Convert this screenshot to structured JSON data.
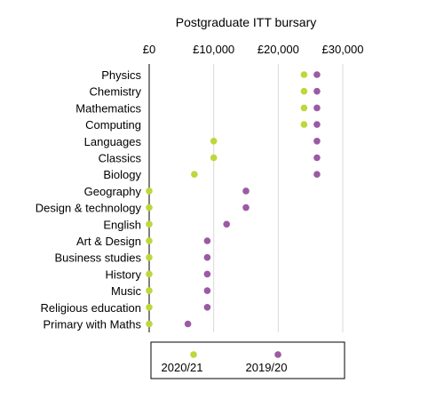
{
  "chart_data": {
    "type": "scatter",
    "title": "Postgraduate ITT bursary",
    "xlabel": "",
    "ylabel": "",
    "xlim": [
      0,
      30000
    ],
    "x_ticks": [
      0,
      10000,
      20000,
      30000
    ],
    "x_tick_labels": [
      "£0",
      "£10,000",
      "£20,000",
      "£30,000"
    ],
    "grid": true,
    "legend_position": "bottom",
    "categories": [
      "Physics",
      "Chemistry",
      "Mathematics",
      "Computing",
      "Languages",
      "Classics",
      "Biology",
      "Geography",
      "Design & technology",
      "English",
      "Art & Design",
      "Business studies",
      "History",
      "Music",
      "Religious education",
      "Primary with Maths"
    ],
    "series": [
      {
        "name": "2020/21",
        "color": "#c0d63a",
        "values": [
          24000,
          24000,
          24000,
          24000,
          10000,
          10000,
          7000,
          0,
          0,
          0,
          0,
          0,
          0,
          0,
          0,
          0
        ]
      },
      {
        "name": "2019/20",
        "color": "#9b5aa3",
        "values": [
          26000,
          26000,
          26000,
          26000,
          26000,
          26000,
          26000,
          15000,
          15000,
          12000,
          9000,
          9000,
          9000,
          9000,
          9000,
          6000
        ]
      }
    ]
  }
}
